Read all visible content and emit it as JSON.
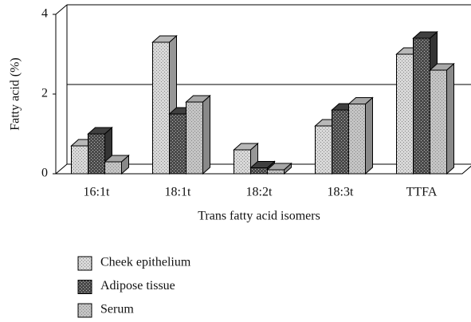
{
  "chart_data": {
    "type": "bar",
    "y_label": "Fatty acid (%)",
    "x_label": "Trans fatty acid isomers",
    "categories": [
      "16:1t",
      "18:1t",
      "18:2t",
      "18:3t",
      "TTFA"
    ],
    "series": [
      {
        "name": "Cheek epithelium",
        "color": "#d8d8d8",
        "values": [
          0.7,
          3.3,
          0.6,
          1.2,
          3.0
        ]
      },
      {
        "name": "Adipose tissue",
        "color": "#4a4a4a",
        "values": [
          1.0,
          1.5,
          0.15,
          1.6,
          3.4
        ]
      },
      {
        "name": "Serum",
        "color": "#c4c4c4",
        "values": [
          0.3,
          1.8,
          0.1,
          1.75,
          2.6
        ]
      }
    ],
    "ylim": [
      0,
      4
    ],
    "yticks": [
      0,
      2,
      4
    ],
    "grid": true
  }
}
